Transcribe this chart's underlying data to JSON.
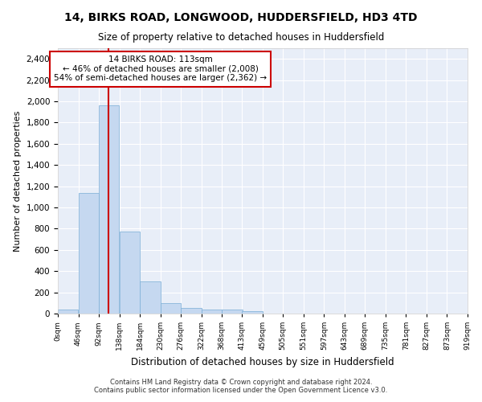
{
  "title1": "14, BIRKS ROAD, LONGWOOD, HUDDERSFIELD, HD3 4TD",
  "title2": "Size of property relative to detached houses in Huddersfield",
  "xlabel": "Distribution of detached houses by size in Huddersfield",
  "ylabel": "Number of detached properties",
  "footnote1": "Contains HM Land Registry data © Crown copyright and database right 2024.",
  "footnote2": "Contains public sector information licensed under the Open Government Licence v3.0.",
  "annotation_line1": "14 BIRKS ROAD: 113sqm",
  "annotation_line2": "← 46% of detached houses are smaller (2,008)",
  "annotation_line3": "54% of semi-detached houses are larger (2,362) →",
  "property_size_sqm": 113,
  "bar_color": "#c5d8f0",
  "bar_edge_color": "#7aaed6",
  "marker_color": "#cc0000",
  "background_color": "#ffffff",
  "axes_background": "#e8eef8",
  "grid_color": "#ffffff",
  "bins": [
    0,
    46,
    92,
    138,
    184,
    230,
    276,
    322,
    368,
    413,
    459,
    505,
    551,
    597,
    643,
    689,
    735,
    781,
    827,
    873,
    919
  ],
  "bin_labels": [
    "0sqm",
    "46sqm",
    "92sqm",
    "138sqm",
    "184sqm",
    "230sqm",
    "276sqm",
    "322sqm",
    "368sqm",
    "413sqm",
    "459sqm",
    "505sqm",
    "551sqm",
    "597sqm",
    "643sqm",
    "689sqm",
    "735sqm",
    "781sqm",
    "827sqm",
    "873sqm",
    "919sqm"
  ],
  "bar_heights": [
    35,
    1140,
    1960,
    770,
    300,
    100,
    50,
    40,
    35,
    25,
    0,
    0,
    0,
    0,
    0,
    0,
    0,
    0,
    0,
    0
  ],
  "ylim": [
    0,
    2500
  ],
  "yticks": [
    0,
    200,
    400,
    600,
    800,
    1000,
    1200,
    1400,
    1600,
    1800,
    2000,
    2200,
    2400
  ]
}
